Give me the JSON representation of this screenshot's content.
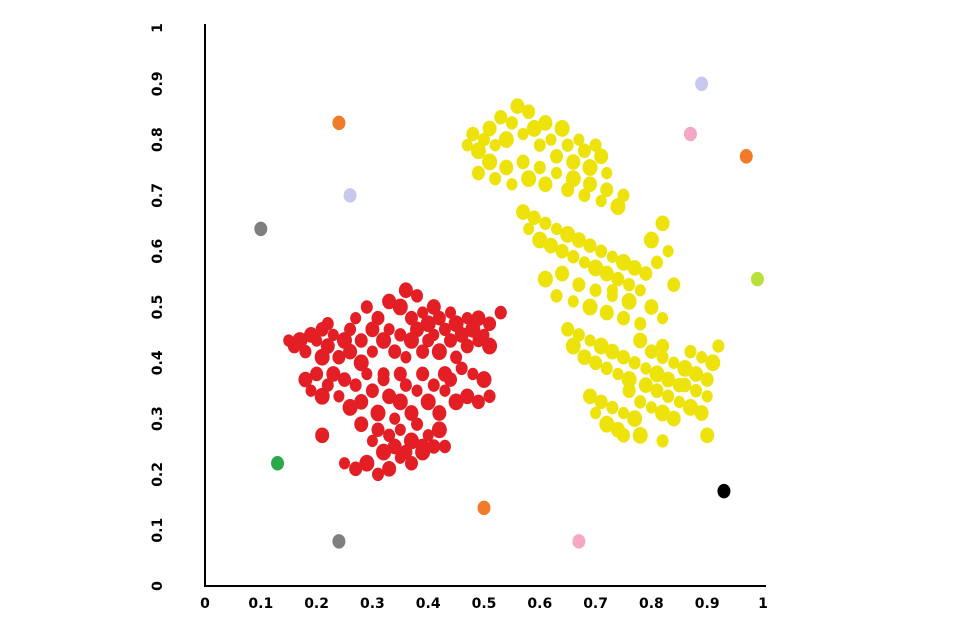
{
  "chart_data": {
    "type": "scatter",
    "title": "",
    "xlabel": "",
    "ylabel": "",
    "xlim": [
      0,
      1
    ],
    "ylim": [
      0,
      1
    ],
    "grid": false,
    "legend": "none",
    "x_ticks": [
      "0",
      "0.1",
      "0.2",
      "0.3",
      "0.4",
      "0.5",
      "0.6",
      "0.7",
      "0.8",
      "0.9",
      "1"
    ],
    "y_ticks": [
      "0",
      "0.1",
      "0.2",
      "0.3",
      "0.4",
      "0.5",
      "0.6",
      "0.7",
      "0.8",
      "0.9",
      "1"
    ],
    "colors": {
      "red": "#e31e24",
      "yellow": "#ede20a"
    },
    "series": [
      {
        "color": "#e31e24",
        "points": [
          [
            0.15,
            0.44
          ],
          [
            0.16,
            0.43
          ],
          [
            0.17,
            0.44
          ],
          [
            0.18,
            0.42
          ],
          [
            0.19,
            0.45
          ],
          [
            0.2,
            0.44
          ],
          [
            0.21,
            0.46
          ],
          [
            0.21,
            0.41
          ],
          [
            0.22,
            0.47
          ],
          [
            0.22,
            0.43
          ],
          [
            0.23,
            0.45
          ],
          [
            0.24,
            0.41
          ],
          [
            0.25,
            0.44
          ],
          [
            0.26,
            0.46
          ],
          [
            0.26,
            0.42
          ],
          [
            0.27,
            0.48
          ],
          [
            0.28,
            0.44
          ],
          [
            0.28,
            0.4
          ],
          [
            0.29,
            0.5
          ],
          [
            0.3,
            0.46
          ],
          [
            0.3,
            0.42
          ],
          [
            0.31,
            0.48
          ],
          [
            0.32,
            0.44
          ],
          [
            0.32,
            0.38
          ],
          [
            0.33,
            0.51
          ],
          [
            0.33,
            0.46
          ],
          [
            0.34,
            0.42
          ],
          [
            0.35,
            0.5
          ],
          [
            0.35,
            0.45
          ],
          [
            0.36,
            0.53
          ],
          [
            0.36,
            0.41
          ],
          [
            0.37,
            0.48
          ],
          [
            0.37,
            0.44
          ],
          [
            0.38,
            0.52
          ],
          [
            0.38,
            0.46
          ],
          [
            0.39,
            0.49
          ],
          [
            0.39,
            0.42
          ],
          [
            0.4,
            0.47
          ],
          [
            0.4,
            0.44
          ],
          [
            0.41,
            0.5
          ],
          [
            0.41,
            0.45
          ],
          [
            0.42,
            0.48
          ],
          [
            0.42,
            0.42
          ],
          [
            0.43,
            0.46
          ],
          [
            0.43,
            0.38
          ],
          [
            0.44,
            0.49
          ],
          [
            0.44,
            0.44
          ],
          [
            0.45,
            0.47
          ],
          [
            0.45,
            0.41
          ],
          [
            0.46,
            0.45
          ],
          [
            0.47,
            0.48
          ],
          [
            0.47,
            0.43
          ],
          [
            0.48,
            0.46
          ],
          [
            0.49,
            0.44
          ],
          [
            0.49,
            0.48
          ],
          [
            0.5,
            0.45
          ],
          [
            0.51,
            0.47
          ],
          [
            0.51,
            0.43
          ],
          [
            0.53,
            0.49
          ],
          [
            0.18,
            0.37
          ],
          [
            0.19,
            0.35
          ],
          [
            0.2,
            0.38
          ],
          [
            0.21,
            0.34
          ],
          [
            0.22,
            0.36
          ],
          [
            0.23,
            0.38
          ],
          [
            0.24,
            0.34
          ],
          [
            0.25,
            0.37
          ],
          [
            0.26,
            0.32
          ],
          [
            0.27,
            0.36
          ],
          [
            0.28,
            0.33
          ],
          [
            0.29,
            0.38
          ],
          [
            0.3,
            0.35
          ],
          [
            0.31,
            0.31
          ],
          [
            0.32,
            0.37
          ],
          [
            0.33,
            0.34
          ],
          [
            0.34,
            0.3
          ],
          [
            0.35,
            0.38
          ],
          [
            0.35,
            0.33
          ],
          [
            0.36,
            0.36
          ],
          [
            0.37,
            0.31
          ],
          [
            0.38,
            0.35
          ],
          [
            0.39,
            0.38
          ],
          [
            0.4,
            0.33
          ],
          [
            0.41,
            0.36
          ],
          [
            0.42,
            0.31
          ],
          [
            0.43,
            0.35
          ],
          [
            0.44,
            0.37
          ],
          [
            0.45,
            0.33
          ],
          [
            0.46,
            0.39
          ],
          [
            0.47,
            0.34
          ],
          [
            0.48,
            0.38
          ],
          [
            0.49,
            0.33
          ],
          [
            0.5,
            0.37
          ],
          [
            0.51,
            0.34
          ],
          [
            0.28,
            0.29
          ],
          [
            0.3,
            0.26
          ],
          [
            0.31,
            0.28
          ],
          [
            0.32,
            0.24
          ],
          [
            0.33,
            0.27
          ],
          [
            0.34,
            0.25
          ],
          [
            0.35,
            0.28
          ],
          [
            0.36,
            0.24
          ],
          [
            0.37,
            0.26
          ],
          [
            0.38,
            0.29
          ],
          [
            0.39,
            0.25
          ],
          [
            0.4,
            0.27
          ],
          [
            0.41,
            0.25
          ],
          [
            0.42,
            0.28
          ],
          [
            0.43,
            0.25
          ],
          [
            0.21,
            0.27
          ],
          [
            0.25,
            0.22
          ],
          [
            0.27,
            0.21
          ],
          [
            0.29,
            0.22
          ],
          [
            0.31,
            0.2
          ],
          [
            0.33,
            0.21
          ],
          [
            0.35,
            0.23
          ],
          [
            0.37,
            0.22
          ],
          [
            0.39,
            0.24
          ],
          [
            0.53,
            0.49
          ]
        ]
      },
      {
        "color": "#ede20a",
        "points": [
          [
            0.47,
            0.79
          ],
          [
            0.48,
            0.81
          ],
          [
            0.49,
            0.78
          ],
          [
            0.5,
            0.8
          ],
          [
            0.51,
            0.82
          ],
          [
            0.52,
            0.79
          ],
          [
            0.53,
            0.84
          ],
          [
            0.54,
            0.8
          ],
          [
            0.55,
            0.83
          ],
          [
            0.56,
            0.86
          ],
          [
            0.57,
            0.81
          ],
          [
            0.58,
            0.85
          ],
          [
            0.59,
            0.82
          ],
          [
            0.6,
            0.79
          ],
          [
            0.61,
            0.83
          ],
          [
            0.62,
            0.8
          ],
          [
            0.63,
            0.77
          ],
          [
            0.64,
            0.82
          ],
          [
            0.65,
            0.79
          ],
          [
            0.66,
            0.76
          ],
          [
            0.67,
            0.8
          ],
          [
            0.68,
            0.78
          ],
          [
            0.69,
            0.75
          ],
          [
            0.7,
            0.79
          ],
          [
            0.71,
            0.77
          ],
          [
            0.72,
            0.74
          ],
          [
            0.49,
            0.74
          ],
          [
            0.51,
            0.76
          ],
          [
            0.52,
            0.73
          ],
          [
            0.54,
            0.75
          ],
          [
            0.55,
            0.72
          ],
          [
            0.57,
            0.76
          ],
          [
            0.58,
            0.73
          ],
          [
            0.6,
            0.75
          ],
          [
            0.61,
            0.72
          ],
          [
            0.63,
            0.74
          ],
          [
            0.65,
            0.71
          ],
          [
            0.66,
            0.73
          ],
          [
            0.68,
            0.7
          ],
          [
            0.69,
            0.72
          ],
          [
            0.71,
            0.69
          ],
          [
            0.72,
            0.71
          ],
          [
            0.74,
            0.68
          ],
          [
            0.75,
            0.7
          ],
          [
            0.57,
            0.67
          ],
          [
            0.58,
            0.64
          ],
          [
            0.59,
            0.66
          ],
          [
            0.6,
            0.62
          ],
          [
            0.61,
            0.65
          ],
          [
            0.62,
            0.61
          ],
          [
            0.63,
            0.64
          ],
          [
            0.64,
            0.6
          ],
          [
            0.65,
            0.63
          ],
          [
            0.66,
            0.59
          ],
          [
            0.67,
            0.62
          ],
          [
            0.68,
            0.58
          ],
          [
            0.69,
            0.61
          ],
          [
            0.7,
            0.57
          ],
          [
            0.71,
            0.6
          ],
          [
            0.72,
            0.56
          ],
          [
            0.73,
            0.59
          ],
          [
            0.74,
            0.55
          ],
          [
            0.75,
            0.58
          ],
          [
            0.76,
            0.54
          ],
          [
            0.77,
            0.57
          ],
          [
            0.78,
            0.53
          ],
          [
            0.79,
            0.56
          ],
          [
            0.8,
            0.62
          ],
          [
            0.81,
            0.58
          ],
          [
            0.82,
            0.65
          ],
          [
            0.83,
            0.6
          ],
          [
            0.84,
            0.54
          ],
          [
            0.61,
            0.55
          ],
          [
            0.63,
            0.52
          ],
          [
            0.64,
            0.56
          ],
          [
            0.66,
            0.51
          ],
          [
            0.67,
            0.54
          ],
          [
            0.69,
            0.5
          ],
          [
            0.7,
            0.53
          ],
          [
            0.72,
            0.49
          ],
          [
            0.73,
            0.52
          ],
          [
            0.75,
            0.48
          ],
          [
            0.76,
            0.51
          ],
          [
            0.78,
            0.47
          ],
          [
            0.8,
            0.5
          ],
          [
            0.82,
            0.48
          ],
          [
            0.65,
            0.46
          ],
          [
            0.66,
            0.43
          ],
          [
            0.67,
            0.45
          ],
          [
            0.68,
            0.41
          ],
          [
            0.69,
            0.44
          ],
          [
            0.7,
            0.4
          ],
          [
            0.71,
            0.43
          ],
          [
            0.72,
            0.39
          ],
          [
            0.73,
            0.42
          ],
          [
            0.74,
            0.38
          ],
          [
            0.75,
            0.41
          ],
          [
            0.76,
            0.37
          ],
          [
            0.77,
            0.4
          ],
          [
            0.78,
            0.44
          ],
          [
            0.79,
            0.39
          ],
          [
            0.8,
            0.42
          ],
          [
            0.81,
            0.38
          ],
          [
            0.82,
            0.41
          ],
          [
            0.83,
            0.37
          ],
          [
            0.84,
            0.4
          ],
          [
            0.85,
            0.36
          ],
          [
            0.86,
            0.39
          ],
          [
            0.87,
            0.42
          ],
          [
            0.88,
            0.38
          ],
          [
            0.89,
            0.41
          ],
          [
            0.9,
            0.37
          ],
          [
            0.91,
            0.4
          ],
          [
            0.92,
            0.43
          ],
          [
            0.69,
            0.34
          ],
          [
            0.7,
            0.31
          ],
          [
            0.71,
            0.33
          ],
          [
            0.72,
            0.29
          ],
          [
            0.73,
            0.32
          ],
          [
            0.74,
            0.28
          ],
          [
            0.75,
            0.31
          ],
          [
            0.76,
            0.35
          ],
          [
            0.77,
            0.3
          ],
          [
            0.78,
            0.33
          ],
          [
            0.79,
            0.36
          ],
          [
            0.8,
            0.32
          ],
          [
            0.81,
            0.35
          ],
          [
            0.82,
            0.31
          ],
          [
            0.83,
            0.34
          ],
          [
            0.84,
            0.3
          ],
          [
            0.85,
            0.33
          ],
          [
            0.86,
            0.36
          ],
          [
            0.87,
            0.32
          ],
          [
            0.88,
            0.35
          ],
          [
            0.89,
            0.31
          ],
          [
            0.9,
            0.34
          ],
          [
            0.75,
            0.27
          ],
          [
            0.78,
            0.27
          ],
          [
            0.82,
            0.26
          ],
          [
            0.9,
            0.27
          ],
          [
            0.73,
            0.53
          ],
          [
            0.82,
            0.43
          ]
        ]
      },
      {
        "color": "outliers",
        "points": [
          [
            0.24,
            0.83,
            "#f07c2a"
          ],
          [
            0.97,
            0.77,
            "#f07c2a"
          ],
          [
            0.5,
            0.14,
            "#f07c2a"
          ],
          [
            0.26,
            0.7,
            "#c8c8ec"
          ],
          [
            0.89,
            0.9,
            "#c8c8ec"
          ],
          [
            0.1,
            0.64,
            "#7f7f7f"
          ],
          [
            0.24,
            0.08,
            "#7f7f7f"
          ],
          [
            0.87,
            0.81,
            "#f4a8c6"
          ],
          [
            0.67,
            0.08,
            "#f4a8c6"
          ],
          [
            0.99,
            0.55,
            "#b8e038"
          ],
          [
            0.13,
            0.22,
            "#2aa84a"
          ],
          [
            0.93,
            0.17,
            "#000000"
          ]
        ]
      }
    ]
  }
}
